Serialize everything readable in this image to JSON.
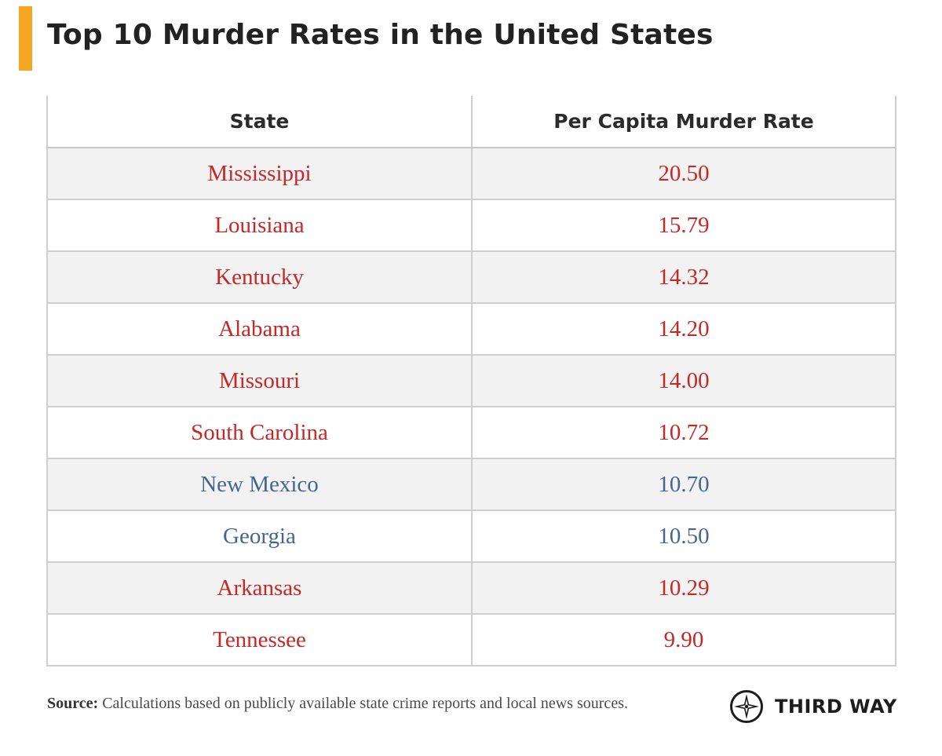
{
  "title": "Top 10 Murder Rates in the United States",
  "colors": {
    "accent": "#f5a623",
    "red": "#c62828",
    "blue": "#45668e",
    "header_text": "#2b2b2b",
    "stripe": "#f2f2f2",
    "border": "#cfcfcf"
  },
  "chart_data": {
    "type": "table",
    "columns": [
      "State",
      "Per Capita Murder Rate"
    ],
    "rows": [
      {
        "state": "Mississippi",
        "rate": "20.50",
        "color": "red"
      },
      {
        "state": "Louisiana",
        "rate": "15.79",
        "color": "red"
      },
      {
        "state": "Kentucky",
        "rate": "14.32",
        "color": "red"
      },
      {
        "state": "Alabama",
        "rate": "14.20",
        "color": "red"
      },
      {
        "state": "Missouri",
        "rate": "14.00",
        "color": "red"
      },
      {
        "state": "South Carolina",
        "rate": "10.72",
        "color": "red"
      },
      {
        "state": "New Mexico",
        "rate": "10.70",
        "color": "blue"
      },
      {
        "state": "Georgia",
        "rate": "10.50",
        "color": "blue"
      },
      {
        "state": "Arkansas",
        "rate": "10.29",
        "color": "red"
      },
      {
        "state": "Tennessee",
        "rate": "9.90",
        "color": "red"
      }
    ]
  },
  "footer": {
    "source_label": "Source:",
    "source_text": " Calculations based on publicly available state crime reports and local news sources.",
    "logo_text": "THIRD WAY",
    "logo_icon": "compass-icon"
  }
}
